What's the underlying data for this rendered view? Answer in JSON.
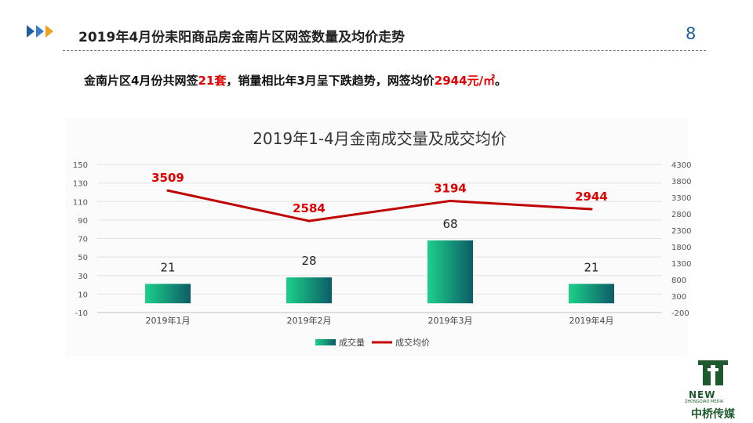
{
  "header": {
    "title": "2019年4月份耒阳商品房金南片区网签数量及均价走势",
    "page_number": "8"
  },
  "summary": {
    "prefix": "金南片区4月份共网签",
    "count": "21套",
    "middle": "，销量相比年3月呈下跌趋势，网签均价",
    "price": "2944元/㎡",
    "suffix": "。"
  },
  "colors": {
    "accent": "#1f5fa0",
    "highlight": "#e00000",
    "bar_start": "#1dd08a",
    "bar_end": "#0d5c66",
    "line": "#c00000"
  },
  "icons": {
    "header_arrows": "triple-chevron-right-icon"
  },
  "brand": {
    "new": "NEW",
    "sub": "ZHONGQIAO MEDIA",
    "cn": "中桥传媒"
  },
  "chart_data": {
    "type": "bar+line",
    "title": "2019年1-4月金南成交量及成交均价",
    "categories": [
      "2019年1月",
      "2019年2月",
      "2019年3月",
      "2019年4月"
    ],
    "series": [
      {
        "name": "成交量",
        "type": "bar",
        "axis": "left",
        "values": [
          21,
          28,
          68,
          21
        ]
      },
      {
        "name": "成交均价",
        "type": "line",
        "axis": "right",
        "values": [
          3509,
          2584,
          3194,
          2944
        ]
      }
    ],
    "y_left": {
      "min": -10,
      "max": 150,
      "ticks": [
        -10,
        10,
        30,
        50,
        70,
        90,
        110,
        130,
        150
      ]
    },
    "y_right": {
      "min": -200,
      "max": 4300,
      "ticks": [
        -200,
        300,
        800,
        1300,
        1800,
        2300,
        2800,
        3300,
        3800,
        4300
      ]
    },
    "legend_position": "bottom",
    "grid": true
  }
}
